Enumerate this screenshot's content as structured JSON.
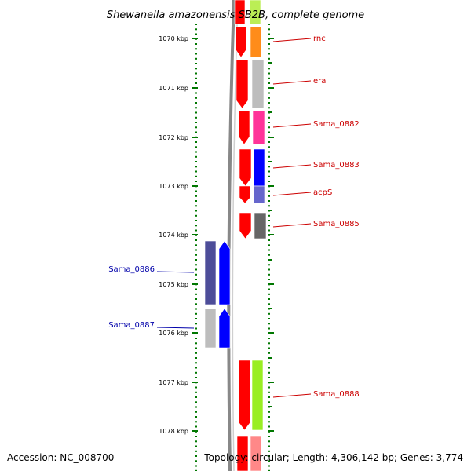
{
  "title": "Shewanella amazonensis SB2B, complete genome",
  "footer": {
    "accession": "Accession: NC_008700",
    "summary": "Topology: circular; Length: 4,306,142 bp; Genes: 3,774"
  },
  "ruler": {
    "labels": [
      "1070 kbp",
      "1071 kbp",
      "1072 kbp",
      "1073 kbp",
      "1074 kbp",
      "1075 kbp",
      "1076 kbp",
      "1077 kbp",
      "1078 kbp"
    ]
  },
  "genes": [
    {
      "name": "rnc",
      "strand": "forward",
      "color": "#ff8c1a",
      "label_color": "#cc0000"
    },
    {
      "name": "era",
      "strand": "forward",
      "color": "#bdbdbd",
      "label_color": "#cc0000"
    },
    {
      "name": "Sama_0882",
      "strand": "forward",
      "color": "#ff3399",
      "label_color": "#cc0000"
    },
    {
      "name": "Sama_0883",
      "strand": "forward",
      "color": "#0000ff",
      "label_color": "#cc0000"
    },
    {
      "name": "acpS",
      "strand": "forward",
      "color": "#6666cc",
      "label_color": "#cc0000"
    },
    {
      "name": "Sama_0885",
      "strand": "forward",
      "color": "#666666",
      "label_color": "#cc0000"
    },
    {
      "name": "Sama_0886",
      "strand": "reverse",
      "color": "#4d4d99",
      "label_color": "#0000aa"
    },
    {
      "name": "Sama_0887",
      "strand": "reverse",
      "color": "#bdbdbd",
      "label_color": "#0000aa"
    },
    {
      "name": "Sama_0888",
      "strand": "forward",
      "color": "#99ee22",
      "label_color": "#cc0000"
    }
  ],
  "colors": {
    "forward_cds": "#ff0000",
    "reverse_cds": "#0000ff",
    "backbone": "#888888",
    "ticks": "#007700",
    "forward_leader": "#cc0000",
    "reverse_leader": "#0000aa"
  }
}
